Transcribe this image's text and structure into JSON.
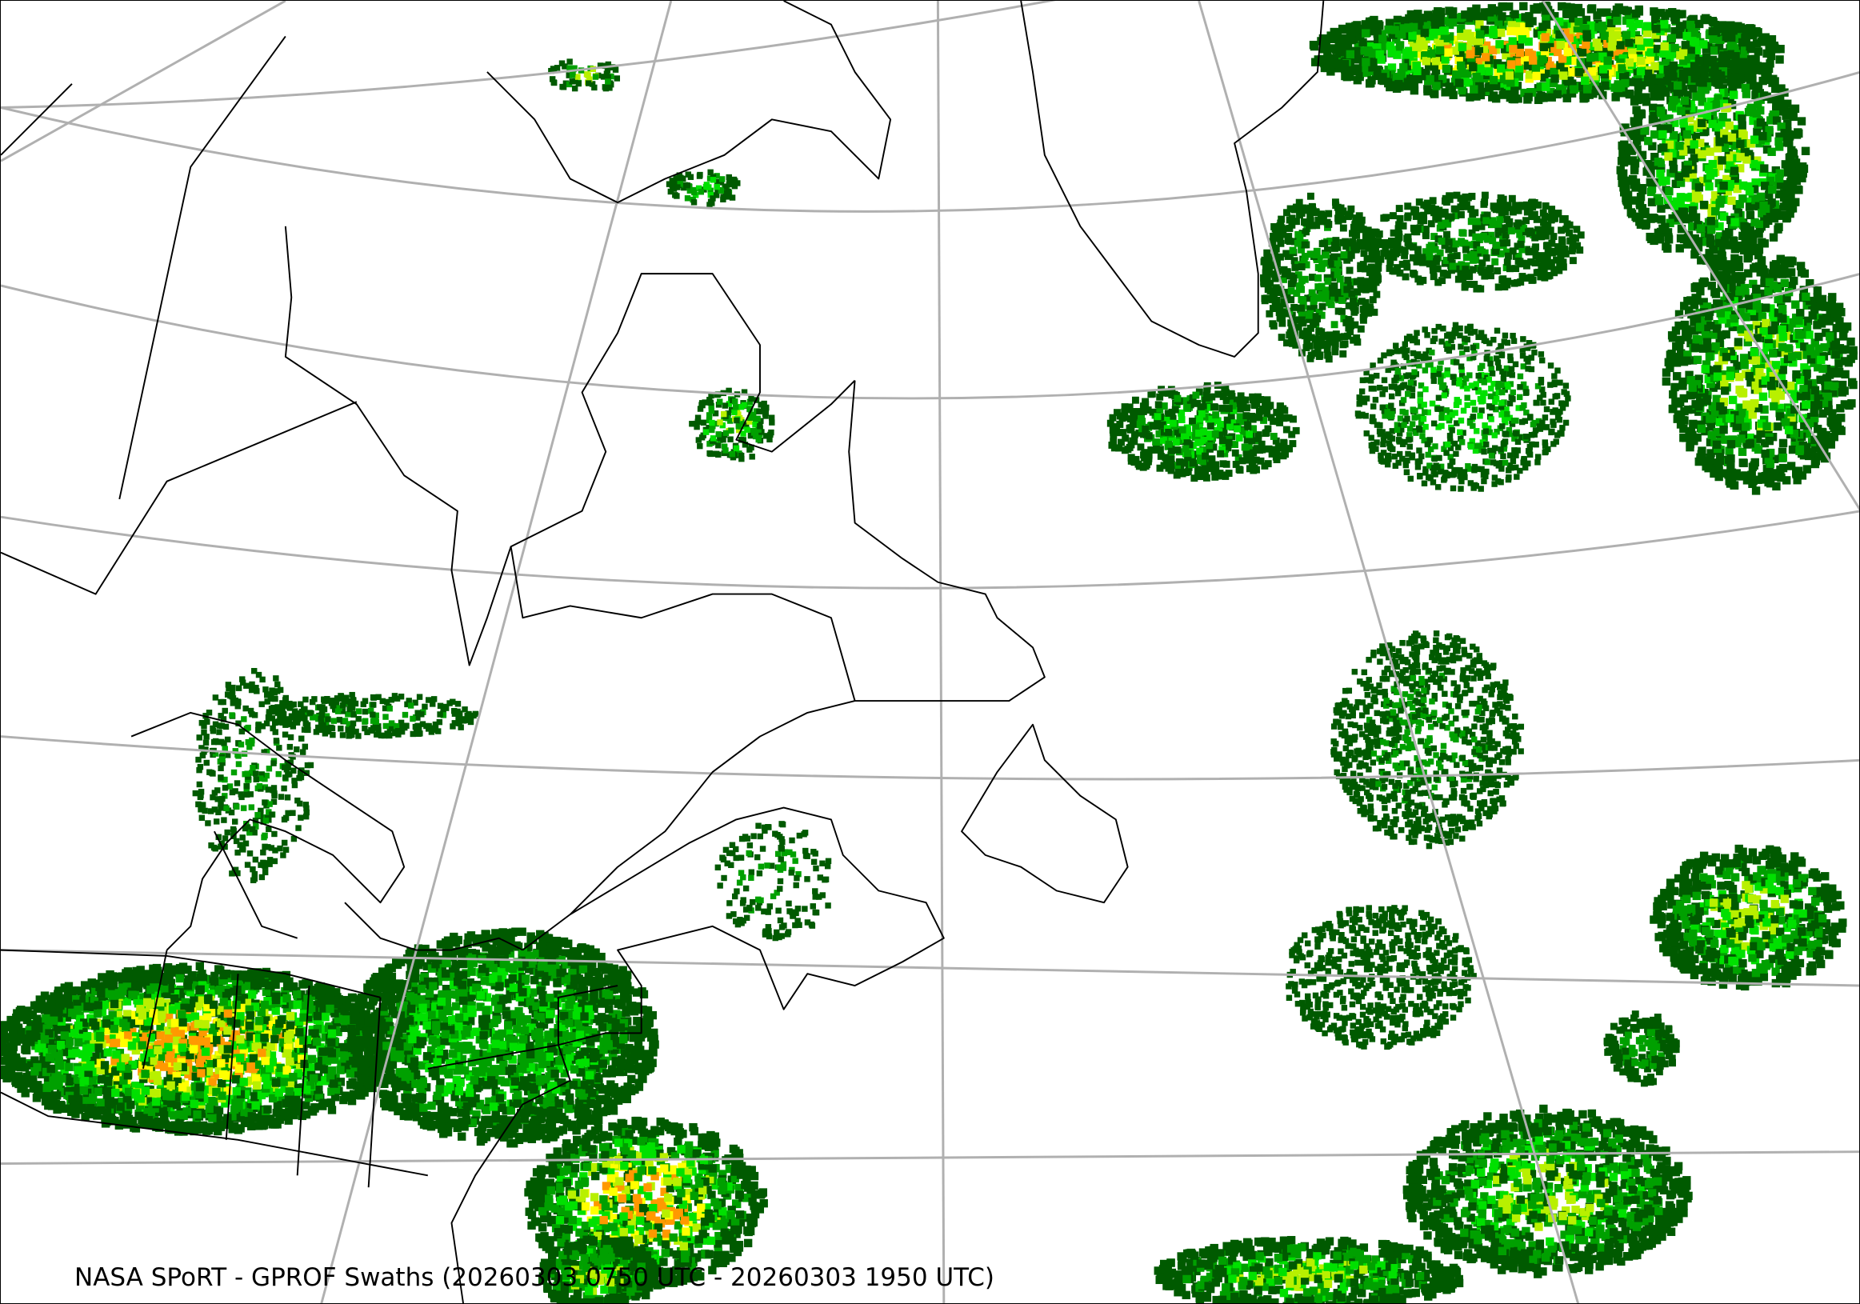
{
  "map": {
    "caption": "NASA SPoRT - GPROF Swaths (20260303 0750 UTC - 20260303 1950 UTC)",
    "graticule_color": "#b0b0b0",
    "coastline_color": "#000000",
    "precip_colors": {
      "light": "#005a00",
      "moderate": "#00a000",
      "bright": "#00e000",
      "heavier": "#b8f000",
      "heavy": "#ffff00",
      "very_heavy": "#ff9900"
    }
  }
}
